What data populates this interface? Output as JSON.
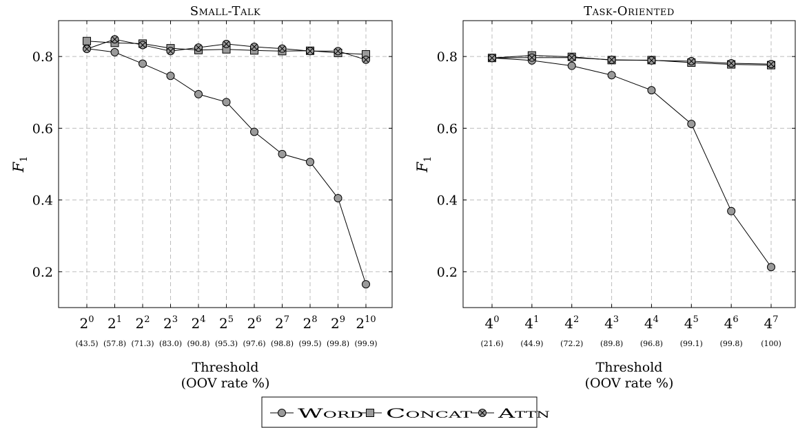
{
  "chart_data": [
    {
      "type": "line",
      "title": "Small-Talk",
      "ylabel": "F",
      "ylabel_sub": "1",
      "xlabel": "Threshold",
      "xlabel2": "(OOV rate %)",
      "ylim": [
        0.1,
        0.9
      ],
      "yticks": [
        "0.2",
        "0.4",
        "0.6",
        "0.8"
      ],
      "categories": [
        {
          "base": "2",
          "exp": "0",
          "oov": "(43.5)"
        },
        {
          "base": "2",
          "exp": "1",
          "oov": "(57.8)"
        },
        {
          "base": "2",
          "exp": "2",
          "oov": "(71.3)"
        },
        {
          "base": "2",
          "exp": "3",
          "oov": "(83.0)"
        },
        {
          "base": "2",
          "exp": "4",
          "oov": "(90.8)"
        },
        {
          "base": "2",
          "exp": "5",
          "oov": "(95.3)"
        },
        {
          "base": "2",
          "exp": "6",
          "oov": "(97.6)"
        },
        {
          "base": "2",
          "exp": "7",
          "oov": "(98.8)"
        },
        {
          "base": "2",
          "exp": "8",
          "oov": "(99.5)"
        },
        {
          "base": "2",
          "exp": "9",
          "oov": "(99.8)"
        },
        {
          "base": "2",
          "exp": "10",
          "oov": "(99.9)"
        }
      ],
      "series": [
        {
          "name": "Word",
          "marker": "circle",
          "values": [
            0.822,
            0.812,
            0.78,
            0.746,
            0.695,
            0.673,
            0.59,
            0.528,
            0.506,
            0.405,
            0.165
          ]
        },
        {
          "name": "Concat",
          "marker": "square",
          "values": [
            0.843,
            0.838,
            0.836,
            0.823,
            0.818,
            0.82,
            0.817,
            0.815,
            0.816,
            0.81,
            0.806
          ]
        },
        {
          "name": "Attn",
          "marker": "otimes",
          "values": [
            0.821,
            0.848,
            0.832,
            0.815,
            0.825,
            0.835,
            0.827,
            0.822,
            0.815,
            0.815,
            0.791
          ]
        }
      ],
      "grid": true
    },
    {
      "type": "line",
      "title": "Task-Oriented",
      "ylabel": "F",
      "ylabel_sub": "1",
      "xlabel": "Threshold",
      "xlabel2": "(OOV rate %)",
      "ylim": [
        0.1,
        0.9
      ],
      "yticks": [
        "0.2",
        "0.4",
        "0.6",
        "0.8"
      ],
      "categories": [
        {
          "base": "4",
          "exp": "0",
          "oov": "(21.6)"
        },
        {
          "base": "4",
          "exp": "1",
          "oov": "(44.9)"
        },
        {
          "base": "4",
          "exp": "2",
          "oov": "(72.2)"
        },
        {
          "base": "4",
          "exp": "3",
          "oov": "(89.8)"
        },
        {
          "base": "4",
          "exp": "4",
          "oov": "(96.8)"
        },
        {
          "base": "4",
          "exp": "5",
          "oov": "(99.1)"
        },
        {
          "base": "4",
          "exp": "6",
          "oov": "(99.8)"
        },
        {
          "base": "4",
          "exp": "7",
          "oov": "(100)"
        }
      ],
      "series": [
        {
          "name": "Word",
          "marker": "circle",
          "values": [
            0.796,
            0.789,
            0.774,
            0.748,
            0.706,
            0.612,
            0.369,
            0.213
          ]
        },
        {
          "name": "Concat",
          "marker": "square",
          "values": [
            0.796,
            0.803,
            0.799,
            0.79,
            0.79,
            0.783,
            0.778,
            0.776
          ]
        },
        {
          "name": "Attn",
          "marker": "otimes",
          "values": [
            0.796,
            0.797,
            0.797,
            0.791,
            0.789,
            0.787,
            0.781,
            0.779
          ]
        }
      ],
      "grid": true
    }
  ],
  "legend": {
    "placement": "bottom-center",
    "items": [
      {
        "label": "Word",
        "marker": "circle"
      },
      {
        "label": "Concat",
        "marker": "square"
      },
      {
        "label": "Attn",
        "marker": "otimes"
      }
    ]
  },
  "colors": {
    "marker_fill": "#9a9a9a",
    "line": "#000000",
    "grid": "#bdbdbd"
  }
}
